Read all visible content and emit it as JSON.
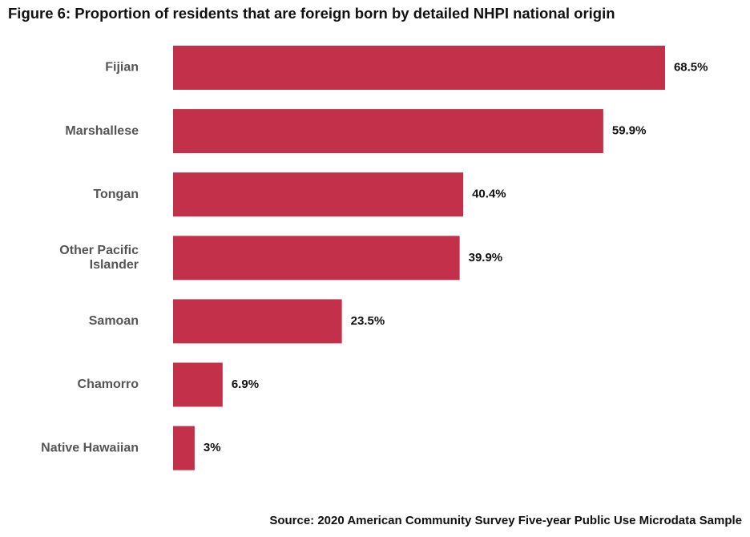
{
  "chart_data": {
    "type": "bar",
    "orientation": "horizontal",
    "title": "Figure 6: Proportion of residents that are foreign born by detailed NHPI national origin",
    "categories": [
      "Fijian",
      "Marshallese",
      "Tongan",
      "Other Pacific Islander",
      "Samoan",
      "Chamorro",
      "Native Hawaiian"
    ],
    "category_lines": [
      [
        "Fijian"
      ],
      [
        "Marshallese"
      ],
      [
        "Tongan"
      ],
      [
        "Other Pacific",
        "Islander"
      ],
      [
        "Samoan"
      ],
      [
        "Chamorro"
      ],
      [
        "Native Hawaiian"
      ]
    ],
    "values": [
      68.5,
      59.9,
      40.4,
      39.9,
      23.5,
      6.9,
      3.0
    ],
    "data_labels": [
      "68.5%",
      "59.9%",
      "40.4%",
      "39.9%",
      "23.5%",
      "6.9%",
      "3%"
    ],
    "xlim": [
      0,
      100
    ],
    "xlabel": "",
    "ylabel": "",
    "grid": false,
    "legend": "none",
    "bar_color": "#c3304a",
    "source": "Source: 2020 American Community Survey Five-year Public Use Microdata Sample"
  }
}
